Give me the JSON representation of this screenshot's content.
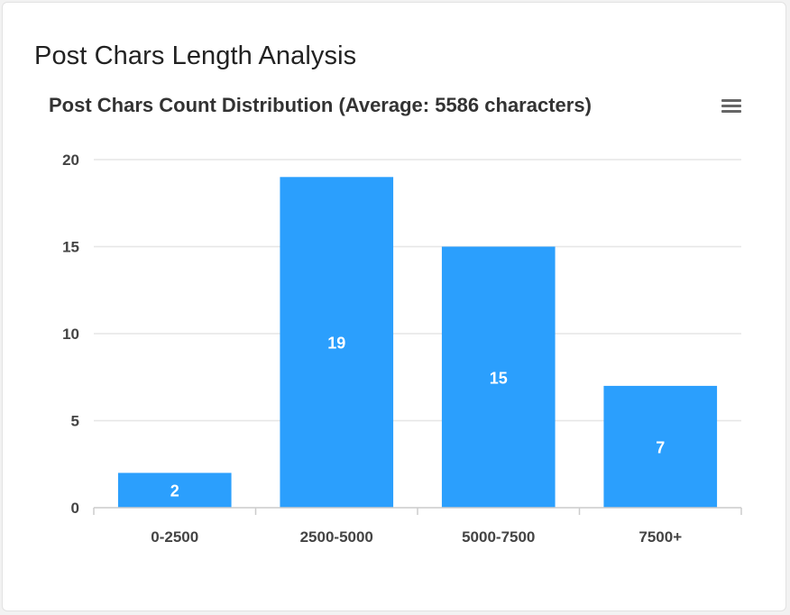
{
  "card": {
    "title": "Post Chars Length Analysis"
  },
  "chart_data": {
    "type": "bar",
    "title": "Post Chars Count Distribution (Average: 5586 characters)",
    "categories": [
      "0-2500",
      "2500-5000",
      "5000-7500",
      "7500+"
    ],
    "values": [
      2,
      19,
      15,
      7
    ],
    "ylim": [
      0,
      20
    ],
    "yticks": [
      0,
      5,
      10,
      15,
      20
    ],
    "xlabel": "",
    "ylabel": "",
    "grid": true,
    "data_labels": true,
    "bar_color": "#2b9ffd",
    "menu_icon": "hamburger-menu-icon"
  }
}
